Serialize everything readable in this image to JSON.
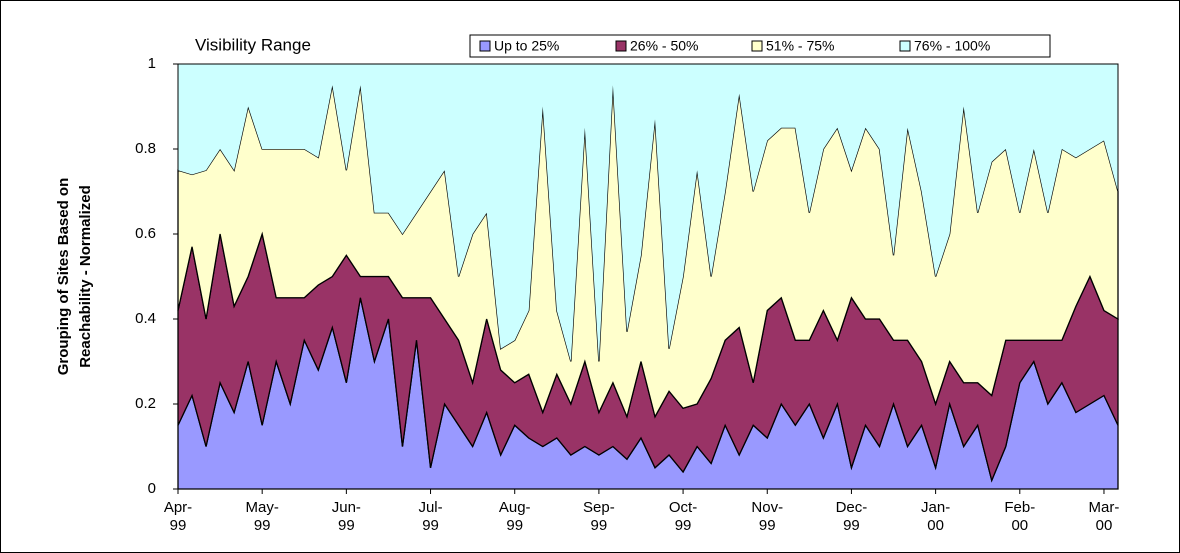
{
  "chart_data": {
    "type": "stacked_area",
    "title": "Visibility Range",
    "y_label": [
      "Grouping of Sites Based on",
      "Reachability - Normalized"
    ],
    "categories": [
      "Apr-99",
      null,
      null,
      null,
      null,
      null,
      "May-99",
      null,
      null,
      null,
      null,
      null,
      "Jun-99",
      null,
      null,
      null,
      null,
      null,
      "Jul-99",
      null,
      null,
      null,
      null,
      null,
      "Aug-99",
      null,
      null,
      null,
      null,
      null,
      "Sep-99",
      null,
      null,
      null,
      null,
      null,
      "Oct-99",
      null,
      null,
      null,
      null,
      null,
      "Nov-99",
      null,
      null,
      null,
      null,
      null,
      "Dec-99",
      null,
      null,
      null,
      null,
      null,
      "Jan-00",
      null,
      null,
      null,
      null,
      null,
      "Feb-00",
      null,
      null,
      null,
      null,
      null,
      "Mar-00",
      null
    ],
    "series": [
      {
        "name": "Up to 25%",
        "color": "#9999ff",
        "values": [
          0.15,
          0.22,
          0.1,
          0.25,
          0.18,
          0.3,
          0.15,
          0.3,
          0.2,
          0.35,
          0.28,
          0.38,
          0.25,
          0.45,
          0.3,
          0.4,
          0.1,
          0.35,
          0.05,
          0.2,
          0.15,
          0.1,
          0.18,
          0.08,
          0.15,
          0.12,
          0.1,
          0.12,
          0.08,
          0.1,
          0.08,
          0.1,
          0.07,
          0.12,
          0.05,
          0.08,
          0.04,
          0.1,
          0.06,
          0.15,
          0.08,
          0.15,
          0.12,
          0.2,
          0.15,
          0.2,
          0.12,
          0.2,
          0.05,
          0.15,
          0.1,
          0.2,
          0.1,
          0.15,
          0.05,
          0.2,
          0.1,
          0.15,
          0.02,
          0.1,
          0.25,
          0.3,
          0.2,
          0.25,
          0.18,
          0.2,
          0.22,
          0.15
        ]
      },
      {
        "name": "26% - 50%",
        "color": "#993366",
        "values": [
          0.27,
          0.35,
          0.3,
          0.35,
          0.25,
          0.2,
          0.45,
          0.15,
          0.25,
          0.1,
          0.2,
          0.12,
          0.3,
          0.05,
          0.2,
          0.1,
          0.35,
          0.1,
          0.4,
          0.2,
          0.2,
          0.15,
          0.22,
          0.2,
          0.1,
          0.15,
          0.08,
          0.15,
          0.12,
          0.2,
          0.1,
          0.15,
          0.1,
          0.18,
          0.12,
          0.15,
          0.15,
          0.1,
          0.2,
          0.2,
          0.3,
          0.1,
          0.3,
          0.25,
          0.2,
          0.15,
          0.3,
          0.15,
          0.4,
          0.25,
          0.3,
          0.15,
          0.25,
          0.15,
          0.15,
          0.1,
          0.15,
          0.1,
          0.2,
          0.25,
          0.1,
          0.05,
          0.15,
          0.1,
          0.25,
          0.3,
          0.2,
          0.25
        ]
      },
      {
        "name": "51% - 75%",
        "color": "#ffffcc",
        "values": [
          0.33,
          0.17,
          0.35,
          0.2,
          0.32,
          0.4,
          0.2,
          0.35,
          0.35,
          0.35,
          0.3,
          0.45,
          0.2,
          0.45,
          0.15,
          0.15,
          0.15,
          0.2,
          0.25,
          0.35,
          0.15,
          0.35,
          0.25,
          0.05,
          0.1,
          0.15,
          0.72,
          0.15,
          0.1,
          0.55,
          0.12,
          0.7,
          0.2,
          0.25,
          0.7,
          0.1,
          0.31,
          0.55,
          0.24,
          0.35,
          0.55,
          0.45,
          0.4,
          0.4,
          0.5,
          0.3,
          0.38,
          0.5,
          0.3,
          0.45,
          0.4,
          0.2,
          0.5,
          0.4,
          0.3,
          0.3,
          0.65,
          0.4,
          0.55,
          0.45,
          0.3,
          0.45,
          0.3,
          0.45,
          0.35,
          0.3,
          0.4,
          0.3
        ]
      },
      {
        "name": "76% - 100%",
        "color": "#ccffff",
        "values": [
          0.25,
          0.26,
          0.25,
          0.2,
          0.25,
          0.1,
          0.2,
          0.2,
          0.2,
          0.2,
          0.22,
          0.05,
          0.25,
          0.05,
          0.35,
          0.35,
          0.4,
          0.35,
          0.3,
          0.25,
          0.5,
          0.4,
          0.35,
          0.67,
          0.65,
          0.58,
          0.1,
          0.58,
          0.7,
          0.15,
          0.7,
          0.05,
          0.63,
          0.45,
          0.13,
          0.67,
          0.5,
          0.25,
          0.5,
          0.3,
          0.07,
          0.3,
          0.18,
          0.15,
          0.15,
          0.35,
          0.2,
          0.15,
          0.25,
          0.15,
          0.2,
          0.45,
          0.15,
          0.3,
          0.5,
          0.4,
          0.1,
          0.35,
          0.23,
          0.2,
          0.35,
          0.2,
          0.35,
          0.2,
          0.22,
          0.2,
          0.18,
          0.3
        ]
      }
    ],
    "ylim": [
      0,
      1
    ],
    "yticks": [
      0,
      0.2,
      0.4,
      0.6,
      0.8,
      1
    ],
    "grid": false
  }
}
